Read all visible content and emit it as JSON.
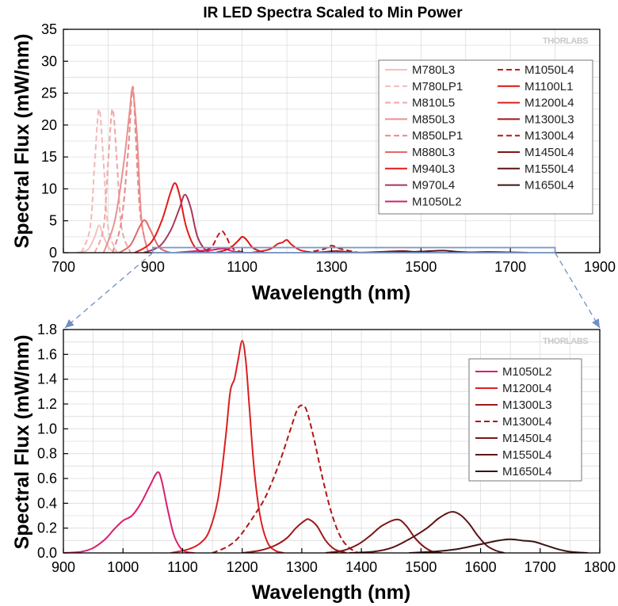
{
  "watermark": "THORLABS",
  "chart_data": [
    {
      "type": "line",
      "title": "IR LED Spectra Scaled to Min Power",
      "xlabel": "Wavelength (nm)",
      "ylabel": "Spectral Flux (mW/nm)",
      "xlim": [
        700,
        1900
      ],
      "ylim": [
        0,
        35
      ],
      "xticks": [
        700,
        900,
        1100,
        1300,
        1500,
        1700,
        1900
      ],
      "yticks": [
        0,
        5,
        10,
        15,
        20,
        25,
        30,
        35
      ],
      "grid": true,
      "legend_position": "top-right",
      "legend_columns": 2,
      "zoom_region": {
        "x": [
          900,
          1800
        ],
        "y": [
          0,
          0.8
        ]
      },
      "series": [
        {
          "name": "M780L3",
          "color": "#f7c0c0",
          "dash": false,
          "points": [
            [
              730,
              0
            ],
            [
              755,
              0.5
            ],
            [
              770,
              2.5
            ],
            [
              780,
              4.3
            ],
            [
              790,
              2.5
            ],
            [
              805,
              0.5
            ],
            [
              830,
              0
            ]
          ]
        },
        {
          "name": "M780LP1",
          "color": "#f4b8b8",
          "dash": true,
          "points": [
            [
              740,
              0
            ],
            [
              760,
              4
            ],
            [
              770,
              14
            ],
            [
              780,
              22.5
            ],
            [
              790,
              14
            ],
            [
              800,
              4
            ],
            [
              820,
              0
            ]
          ]
        },
        {
          "name": "M810L5",
          "color": "#f0a6a6",
          "dash": true,
          "points": [
            [
              770,
              0
            ],
            [
              790,
              4
            ],
            [
              800,
              14
            ],
            [
              810,
              22.5
            ],
            [
              820,
              14
            ],
            [
              830,
              4
            ],
            [
              850,
              0
            ]
          ]
        },
        {
          "name": "M850L3",
          "color": "#eb9090",
          "dash": false,
          "points": [
            [
              790,
              0
            ],
            [
              815,
              5
            ],
            [
              835,
              14
            ],
            [
              848,
              22
            ],
            [
              855,
              25.5
            ],
            [
              865,
              18
            ],
            [
              875,
              5
            ],
            [
              890,
              0
            ]
          ]
        },
        {
          "name": "M850LP1",
          "color": "#e88888",
          "dash": true,
          "points": [
            [
              810,
              0
            ],
            [
              830,
              5
            ],
            [
              845,
              16
            ],
            [
              855,
              26
            ],
            [
              862,
              18
            ],
            [
              872,
              6
            ],
            [
              890,
              0
            ]
          ]
        },
        {
          "name": "M880L3",
          "color": "#e36868",
          "dash": false,
          "points": [
            [
              825,
              0
            ],
            [
              850,
              1.2
            ],
            [
              870,
              4
            ],
            [
              882,
              5.1
            ],
            [
              895,
              3.5
            ],
            [
              915,
              0.8
            ],
            [
              940,
              0
            ]
          ]
        },
        {
          "name": "M940L3",
          "color": "#e41a1a",
          "dash": false,
          "points": [
            [
              860,
              0
            ],
            [
              895,
              1.5
            ],
            [
              920,
              5
            ],
            [
              940,
              9.5
            ],
            [
              950,
              10.9
            ],
            [
              960,
              9
            ],
            [
              975,
              4
            ],
            [
              995,
              0.8
            ],
            [
              1020,
              0
            ]
          ]
        },
        {
          "name": "M970L4",
          "color": "#a8385a",
          "dash": false,
          "points": [
            [
              880,
              0
            ],
            [
              915,
              1
            ],
            [
              940,
              3.5
            ],
            [
              960,
              7
            ],
            [
              972,
              9.1
            ],
            [
              985,
              7
            ],
            [
              1000,
              2.5
            ],
            [
              1020,
              0.3
            ],
            [
              1040,
              0
            ]
          ]
        },
        {
          "name": "M1050L2",
          "color": "#d81f70",
          "dash": false,
          "points": [
            [
              950,
              0
            ],
            [
              1000,
              0.28
            ],
            [
              1030,
              0.4
            ],
            [
              1058,
              0.65
            ],
            [
              1075,
              0.3
            ],
            [
              1100,
              0.02
            ],
            [
              1130,
              0
            ]
          ]
        },
        {
          "name": "M1050L4",
          "color": "#c81818",
          "dash": true,
          "points": [
            [
              1000,
              0
            ],
            [
              1030,
              0.8
            ],
            [
              1045,
              2.6
            ],
            [
              1055,
              3.4
            ],
            [
              1065,
              2.4
            ],
            [
              1080,
              0.6
            ],
            [
              1110,
              0
            ]
          ]
        },
        {
          "name": "M1100L1",
          "color": "#dd1010",
          "dash": false,
          "points": [
            [
              1040,
              0
            ],
            [
              1070,
              0.6
            ],
            [
              1090,
              1.8
            ],
            [
              1100,
              2.5
            ],
            [
              1110,
              2
            ],
            [
              1125,
              0.7
            ],
            [
              1150,
              0
            ]
          ]
        },
        {
          "name": "M1200L4",
          "color": "#dc1f1f",
          "dash": false,
          "points": [
            [
              1120,
              0
            ],
            [
              1160,
              0.5
            ],
            [
              1180,
              1.4
            ],
            [
              1190,
              1.6
            ],
            [
              1200,
              2
            ],
            [
              1210,
              1.3
            ],
            [
              1230,
              0.4
            ],
            [
              1260,
              0
            ]
          ]
        },
        {
          "name": "M1300L3",
          "color": "#9e1818",
          "dash": false,
          "points": [
            [
              1250,
              0
            ],
            [
              1280,
              0.1
            ],
            [
              1310,
              0.27
            ],
            [
              1340,
              0.08
            ],
            [
              1370,
              0
            ]
          ]
        },
        {
          "name": "M1300L4",
          "color": "#b01616",
          "dash": true,
          "points": [
            [
              1240,
              0
            ],
            [
              1280,
              0.5
            ],
            [
              1300,
              1.1
            ],
            [
              1320,
              0.6
            ],
            [
              1360,
              0
            ]
          ]
        },
        {
          "name": "M1450L4",
          "color": "#801515",
          "dash": false,
          "points": [
            [
              1360,
              0
            ],
            [
              1420,
              0.15
            ],
            [
              1460,
              0.27
            ],
            [
              1490,
              0.1
            ],
            [
              1520,
              0
            ]
          ]
        },
        {
          "name": "M1550L4",
          "color": "#5e1313",
          "dash": false,
          "points": [
            [
              1440,
              0
            ],
            [
              1500,
              0.18
            ],
            [
              1550,
              0.33
            ],
            [
              1580,
              0.15
            ],
            [
              1620,
              0
            ]
          ]
        },
        {
          "name": "M1650L4",
          "color": "#3e1212",
          "dash": false,
          "points": [
            [
              1560,
              0
            ],
            [
              1620,
              0.06
            ],
            [
              1650,
              0.11
            ],
            [
              1690,
              0.07
            ],
            [
              1740,
              0
            ]
          ]
        }
      ]
    },
    {
      "type": "line",
      "title": "",
      "xlabel": "Wavelength (nm)",
      "ylabel": "Spectral Flux (mW/nm)",
      "xlim": [
        900,
        1800
      ],
      "ylim": [
        0,
        1.8
      ],
      "xticks": [
        900,
        1000,
        1100,
        1200,
        1300,
        1400,
        1500,
        1600,
        1700,
        1800
      ],
      "yticks": [
        0,
        0.2,
        0.4,
        0.6,
        0.8,
        1.0,
        1.2,
        1.4,
        1.6,
        1.8
      ],
      "ytick_labels": [
        "0.0",
        "0.2",
        "0.4",
        "0.6",
        "0.8",
        "1.0",
        "1.2",
        "1.4",
        "1.6",
        "1.8"
      ],
      "grid": true,
      "legend_position": "top-right",
      "legend_columns": 1,
      "series": [
        {
          "name": "M1050L2",
          "color": "#d81f70",
          "dash": false,
          "points": [
            [
              900,
              0
            ],
            [
              930,
              0.01
            ],
            [
              950,
              0.04
            ],
            [
              970,
              0.11
            ],
            [
              985,
              0.19
            ],
            [
              1000,
              0.26
            ],
            [
              1015,
              0.3
            ],
            [
              1030,
              0.4
            ],
            [
              1045,
              0.54
            ],
            [
              1058,
              0.65
            ],
            [
              1065,
              0.58
            ],
            [
              1075,
              0.35
            ],
            [
              1085,
              0.15
            ],
            [
              1095,
              0.05
            ],
            [
              1105,
              0.01
            ],
            [
              1120,
              0
            ]
          ]
        },
        {
          "name": "M1200L4",
          "color": "#dc1f1f",
          "dash": false,
          "points": [
            [
              1080,
              0
            ],
            [
              1110,
              0.03
            ],
            [
              1130,
              0.08
            ],
            [
              1145,
              0.18
            ],
            [
              1160,
              0.45
            ],
            [
              1172,
              0.92
            ],
            [
              1180,
              1.3
            ],
            [
              1187,
              1.4
            ],
            [
              1193,
              1.55
            ],
            [
              1200,
              1.71
            ],
            [
              1206,
              1.55
            ],
            [
              1212,
              1.18
            ],
            [
              1220,
              0.68
            ],
            [
              1230,
              0.3
            ],
            [
              1242,
              0.09
            ],
            [
              1255,
              0.02
            ],
            [
              1270,
              0
            ]
          ]
        },
        {
          "name": "M1300L3",
          "color": "#9e1818",
          "dash": false,
          "points": [
            [
              1200,
              0
            ],
            [
              1230,
              0.02
            ],
            [
              1255,
              0.06
            ],
            [
              1275,
              0.12
            ],
            [
              1290,
              0.2
            ],
            [
              1305,
              0.26
            ],
            [
              1312,
              0.27
            ],
            [
              1325,
              0.22
            ],
            [
              1340,
              0.1
            ],
            [
              1355,
              0.03
            ],
            [
              1375,
              0
            ]
          ]
        },
        {
          "name": "M1300L4",
          "color": "#b01616",
          "dash": true,
          "points": [
            [
              1150,
              0
            ],
            [
              1175,
              0.05
            ],
            [
              1195,
              0.13
            ],
            [
              1220,
              0.3
            ],
            [
              1240,
              0.46
            ],
            [
              1262,
              0.72
            ],
            [
              1280,
              0.98
            ],
            [
              1292,
              1.15
            ],
            [
              1300,
              1.19
            ],
            [
              1308,
              1.15
            ],
            [
              1320,
              0.93
            ],
            [
              1335,
              0.6
            ],
            [
              1350,
              0.32
            ],
            [
              1365,
              0.13
            ],
            [
              1380,
              0.04
            ],
            [
              1395,
              0
            ]
          ]
        },
        {
          "name": "M1450L4",
          "color": "#801515",
          "dash": false,
          "points": [
            [
              1340,
              0
            ],
            [
              1370,
              0.02
            ],
            [
              1395,
              0.07
            ],
            [
              1415,
              0.14
            ],
            [
              1435,
              0.22
            ],
            [
              1460,
              0.27
            ],
            [
              1475,
              0.22
            ],
            [
              1490,
              0.12
            ],
            [
              1505,
              0.05
            ],
            [
              1520,
              0.01
            ],
            [
              1535,
              0
            ]
          ]
        },
        {
          "name": "M1550L4",
          "color": "#5e1313",
          "dash": false,
          "points": [
            [
              1380,
              0
            ],
            [
              1420,
              0.01
            ],
            [
              1450,
              0.04
            ],
            [
              1480,
              0.11
            ],
            [
              1510,
              0.2
            ],
            [
              1530,
              0.28
            ],
            [
              1550,
              0.33
            ],
            [
              1565,
              0.31
            ],
            [
              1580,
              0.24
            ],
            [
              1595,
              0.14
            ],
            [
              1610,
              0.06
            ],
            [
              1625,
              0.02
            ],
            [
              1640,
              0
            ]
          ]
        },
        {
          "name": "M1650L4",
          "color": "#3e1212",
          "dash": false,
          "points": [
            [
              1480,
              0
            ],
            [
              1520,
              0.01
            ],
            [
              1560,
              0.03
            ],
            [
              1600,
              0.07
            ],
            [
              1630,
              0.1
            ],
            [
              1650,
              0.11
            ],
            [
              1670,
              0.1
            ],
            [
              1690,
              0.09
            ],
            [
              1710,
              0.06
            ],
            [
              1730,
              0.03
            ],
            [
              1750,
              0.01
            ],
            [
              1780,
              0
            ]
          ]
        }
      ]
    }
  ]
}
